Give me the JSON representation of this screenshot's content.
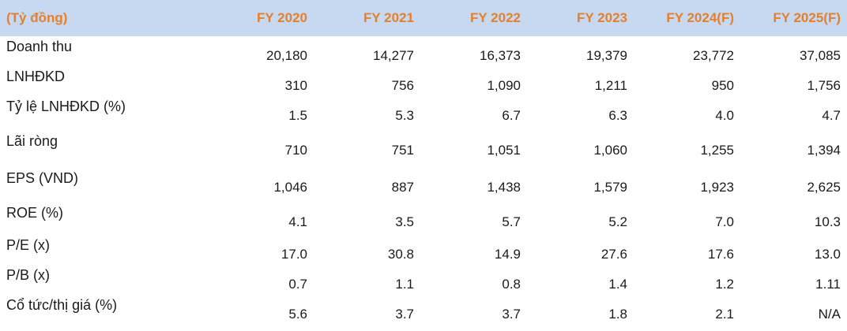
{
  "header": {
    "unit_label": "(Tỷ đồng)",
    "years": [
      "FY 2020",
      "FY 2021",
      "FY 2022",
      "FY 2023",
      "FY 2024(F)",
      "FY 2025(F)"
    ]
  },
  "rows": [
    {
      "label": "Doanh thu",
      "values": [
        "20,180",
        "14,277",
        "16,373",
        "19,379",
        "23,772",
        "37,085"
      ]
    },
    {
      "label": "LNHĐKD",
      "values": [
        "310",
        "756",
        "1,090",
        "1,211",
        "950",
        "1,756"
      ]
    },
    {
      "label": "Tỷ lệ LNHĐKD (%)",
      "values": [
        "1.5",
        "5.3",
        "6.7",
        "6.3",
        "4.0",
        "4.7"
      ]
    },
    {
      "label": "Lãi ròng",
      "values": [
        "710",
        "751",
        "1,051",
        "1,060",
        "1,255",
        "1,394"
      ]
    },
    {
      "label": "EPS (VND)",
      "values": [
        "1,046",
        "887",
        "1,438",
        "1,579",
        "1,923",
        "2,625"
      ]
    },
    {
      "label": "ROE (%)",
      "values": [
        "4.1",
        "3.5",
        "5.7",
        "5.2",
        "7.0",
        "10.3"
      ]
    },
    {
      "label": "P/E (x)",
      "values": [
        "17.0",
        "30.8",
        "14.9",
        "27.6",
        "17.6",
        "13.0"
      ]
    },
    {
      "label": "P/B (x)",
      "values": [
        "0.7",
        "1.1",
        "0.8",
        "1.4",
        "1.2",
        "1.11"
      ]
    },
    {
      "label": "Cổ tức/thị giá (%)",
      "values": [
        "5.6",
        "3.7",
        "3.7",
        "1.8",
        "2.1",
        "N/A"
      ]
    }
  ],
  "colors": {
    "header_background": "#c6d9f1",
    "header_text": "#e4802d",
    "body_text": "#1a1a1a"
  }
}
